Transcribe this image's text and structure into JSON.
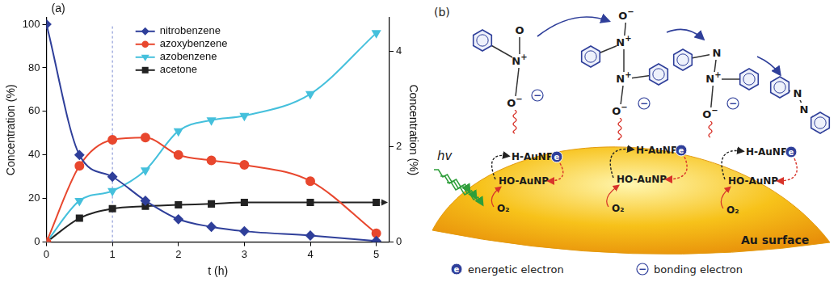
{
  "chart_data": {
    "type": "line",
    "panel_label": "(a)",
    "x_label": "t (h)",
    "y_label": "Concentration (%)",
    "y2_label": "Concentration (%)",
    "xlim": [
      0,
      5.2
    ],
    "xticks": [
      0,
      1,
      2,
      3,
      4,
      5
    ],
    "ylim": [
      0,
      103
    ],
    "yticks": [
      0,
      20,
      40,
      60,
      80,
      100
    ],
    "y2lim": [
      0,
      4.7
    ],
    "y2ticks": [
      0,
      2,
      4
    ],
    "grid": false,
    "legend": "top",
    "vline_x": 1,
    "x": [
      0,
      0.5,
      1,
      1.5,
      2,
      2.5,
      3,
      4,
      5
    ],
    "series": [
      {
        "name": "nitrobenzene",
        "color": "#2f3f9a",
        "marker": "diamond",
        "values": [
          100,
          40,
          30,
          19,
          10.5,
          7,
          5,
          3,
          0.5
        ]
      },
      {
        "name": "azoxybenzene",
        "color": "#e8472e",
        "marker": "circle",
        "values": [
          0,
          35,
          47,
          48,
          40,
          37.5,
          35.5,
          28,
          4
        ]
      },
      {
        "name": "azobenzene",
        "color": "#45c0dc",
        "marker": "triangle-down",
        "values": [
          0,
          19,
          23.5,
          33,
          51,
          56,
          58,
          68,
          96
        ]
      },
      {
        "name": "acetone",
        "color": "#222222",
        "marker": "square",
        "axis": "y2",
        "values": [
          0,
          0.5,
          0.7,
          0.75,
          0.78,
          0.8,
          0.83,
          0.83,
          0.83
        ]
      }
    ]
  },
  "diagram": {
    "panel_label": "(b)",
    "light": "hv",
    "molecules": [
      {
        "atoms": [
          "O",
          "N+",
          "O−"
        ]
      },
      {
        "atoms": [
          "O−",
          "N+",
          "N+",
          "O−"
        ]
      },
      {
        "atoms": [
          "N",
          "N+",
          "O−"
        ]
      },
      {
        "atoms": [
          "N",
          "N"
        ]
      }
    ],
    "sites": [
      {
        "reduced": "H-AuNP",
        "oxidized": "HO-AuNP",
        "gas": "O₂"
      },
      {
        "reduced": "H-AuNP",
        "oxidized": "HO-AuNP",
        "gas": "O₂"
      },
      {
        "reduced": "H-AuNP",
        "oxidized": "HO-AuNP",
        "gas": "O₂"
      }
    ],
    "surface": "Au surface",
    "legend": [
      {
        "symbol": "e",
        "text": "energetic electron"
      },
      {
        "symbol": "−",
        "text": "bonding electron"
      }
    ]
  }
}
